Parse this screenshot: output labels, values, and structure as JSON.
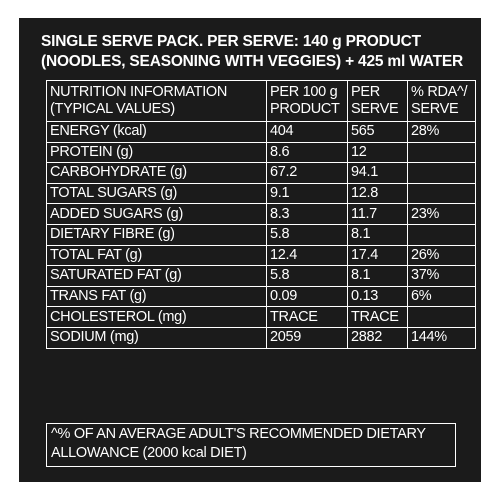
{
  "header": {
    "line1": "SINGLE SERVE PACK. PER SERVE: 140 g PRODUCT",
    "line2": "(NOODLES, SEASONING WITH VEGGIES) + 425 ml WATER"
  },
  "table": {
    "col_headers": {
      "nutrient_line1": "NUTRITION INFORMATION",
      "nutrient_line2": "(TYPICAL VALUES)",
      "per100_line1": "PER 100 g",
      "per100_line2": "PRODUCT",
      "perserve_line1": "PER",
      "perserve_line2": "SERVE",
      "rda_line1": "% RDA^/",
      "rda_line2": "SERVE"
    },
    "rows": [
      {
        "name": "ENERGY (kcal)",
        "per100": "404",
        "perserve": "565",
        "rda": "28%"
      },
      {
        "name": "PROTEIN (g)",
        "per100": "8.6",
        "perserve": "12",
        "rda": ""
      },
      {
        "name": "CARBOHYDRATE (g)",
        "per100": "67.2",
        "perserve": "94.1",
        "rda": ""
      },
      {
        "name": "TOTAL SUGARS (g)",
        "per100": "9.1",
        "perserve": "12.8",
        "rda": ""
      },
      {
        "name": "ADDED SUGARS (g)",
        "per100": "8.3",
        "perserve": "11.7",
        "rda": "23%"
      },
      {
        "name": "DIETARY FIBRE (g)",
        "per100": "5.8",
        "perserve": "8.1",
        "rda": ""
      },
      {
        "name": "TOTAL FAT (g)",
        "per100": "12.4",
        "perserve": "17.4",
        "rda": "26%"
      },
      {
        "name": "SATURATED FAT (g)",
        "per100": "5.8",
        "perserve": "8.1",
        "rda": "37%"
      },
      {
        "name": "TRANS FAT (g)",
        "per100": "0.09",
        "perserve": "0.13",
        "rda": "6%"
      },
      {
        "name": "CHOLESTEROL (mg)",
        "per100": "TRACE",
        "perserve": "TRACE",
        "rda": ""
      },
      {
        "name": "SODIUM (mg)",
        "per100": "2059",
        "perserve": "2882",
        "rda": "144%"
      }
    ]
  },
  "footnote": {
    "line1": "^% OF AN AVERAGE ADULT'S RECOMMENDED DIETARY",
    "line2": "ALLOWANCE (2000 kcal DIET)"
  },
  "colors": {
    "panel_background": "#1b1b1b",
    "text": "#ffffff",
    "lines": "#ffffff"
  }
}
